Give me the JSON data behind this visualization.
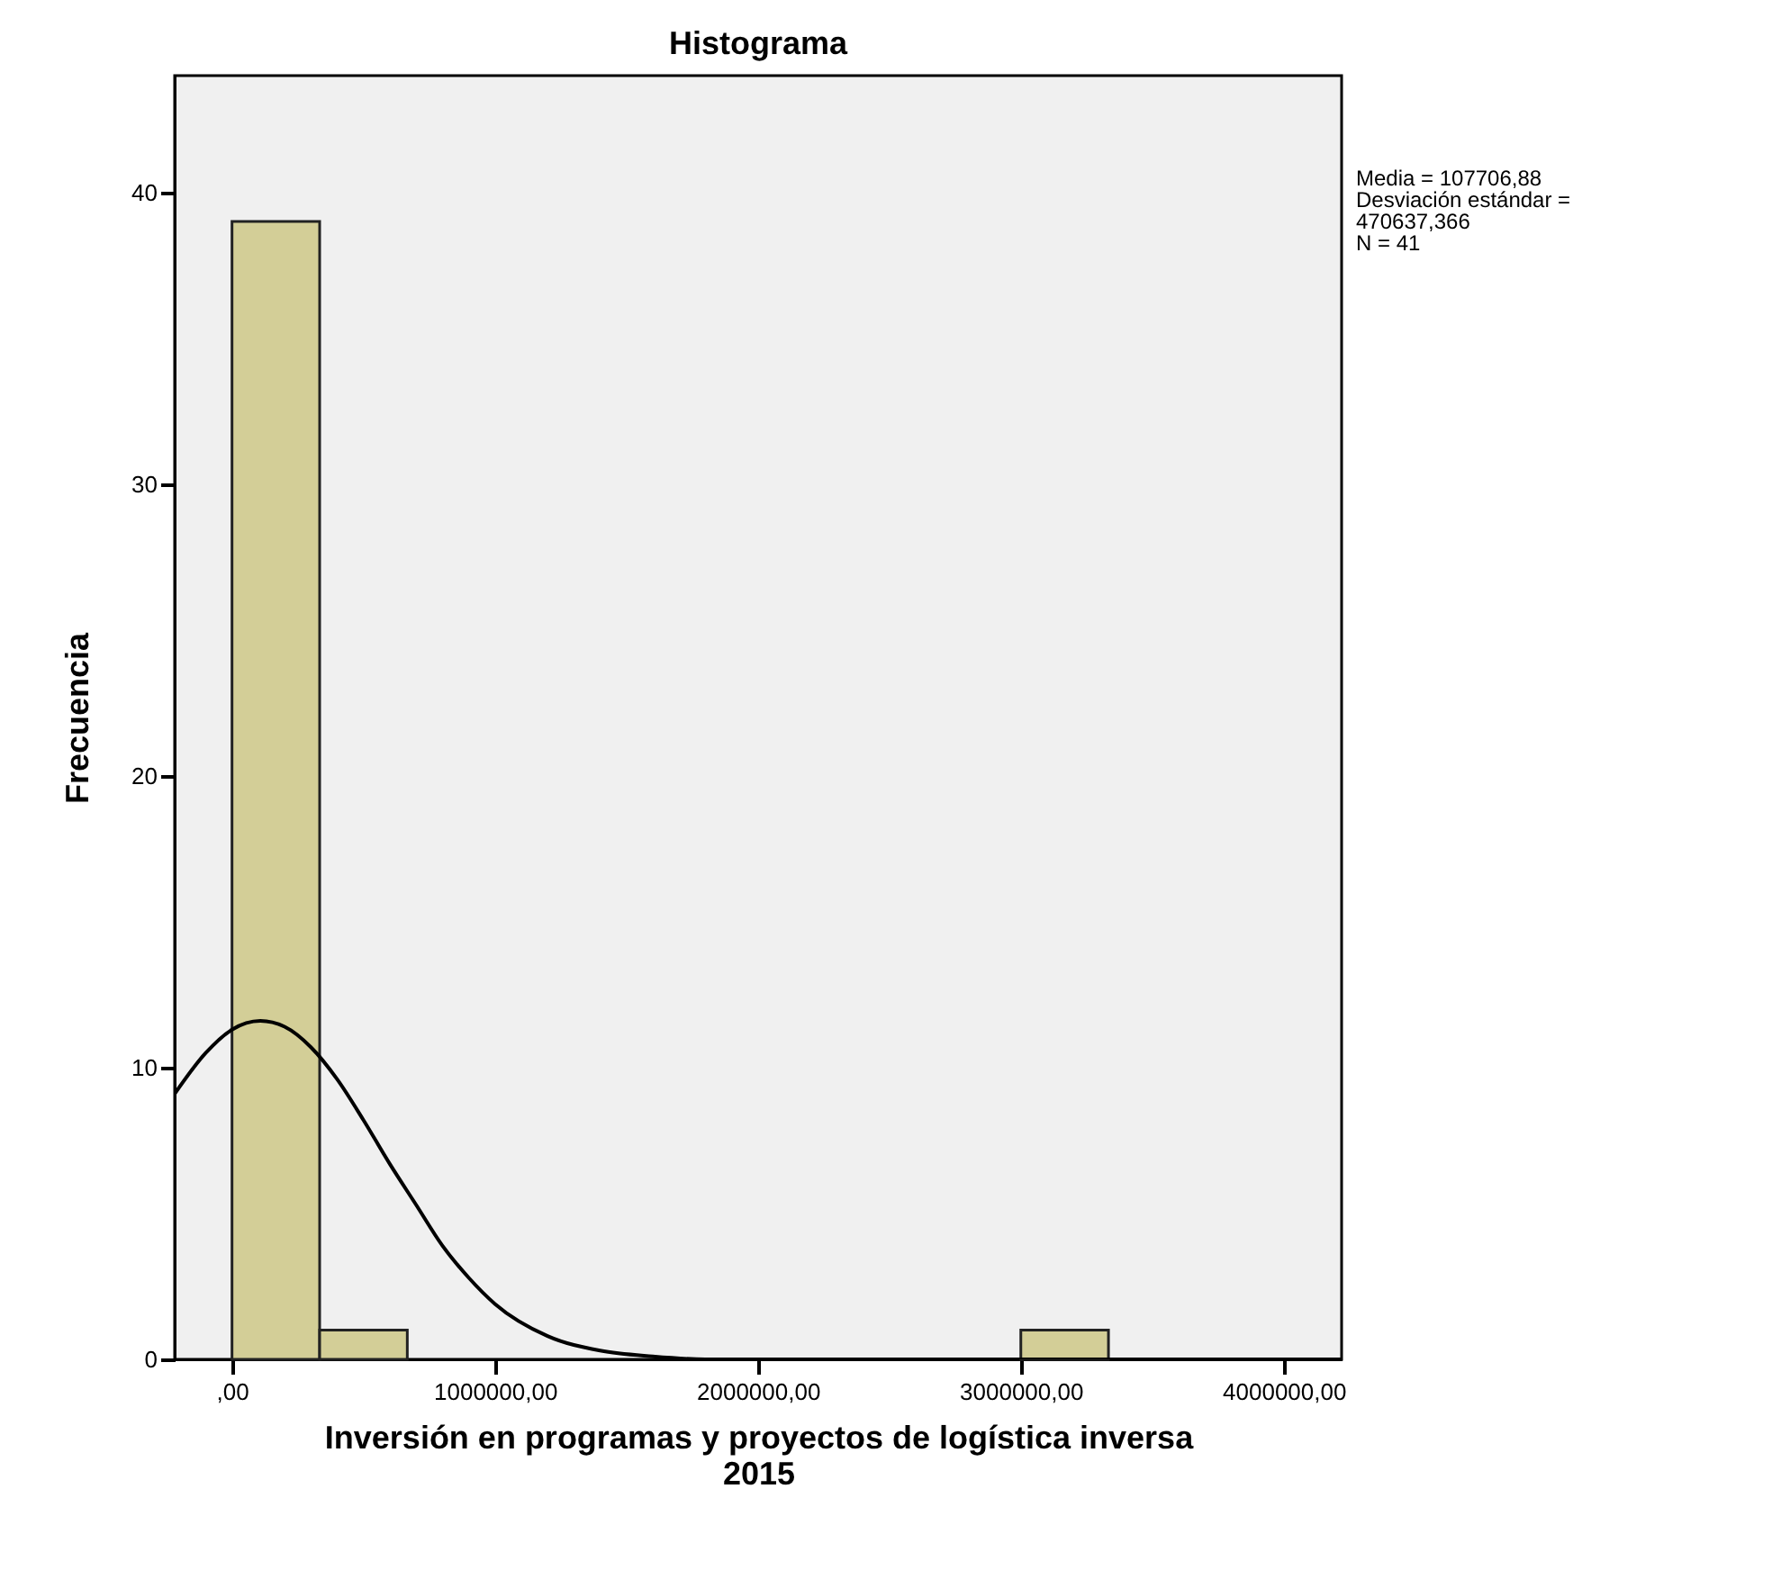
{
  "chart_data": {
    "type": "histogram",
    "title": "Histograma",
    "xlabel": "Inversión en programas y proyectos de logística inversa\n2015",
    "ylabel": "Frecuencia",
    "bins": [
      0,
      333333.33,
      666666.67,
      1000000,
      1333333.33,
      1666666.67,
      2000000,
      2333333.33,
      2666666.67,
      3000000,
      3333333.33
    ],
    "values": [
      39,
      1,
      0,
      0,
      0,
      0,
      0,
      0,
      0,
      1
    ],
    "color": "#d3ce97",
    "series": [
      {
        "type": "line",
        "color": "#000000",
        "x": [
          -218000,
          -100000,
          0,
          107707,
          200000,
          300000,
          400000,
          500000,
          600000,
          700000,
          800000,
          900000,
          1000000,
          1200000,
          1400000,
          1600000,
          1800000,
          2000000,
          2500000,
          3000000,
          3500000,
          4000000,
          4220000
        ],
        "values": [
          9.1,
          10.5,
          11.3,
          11.6,
          11.4,
          10.7,
          9.6,
          8.2,
          6.7,
          5.3,
          3.9,
          2.8,
          1.9,
          0.8,
          0.3,
          0.1,
          0.0,
          0.0,
          0.0,
          0.0,
          0.0,
          0.0,
          0.0
        ]
      }
    ],
    "xlim": [
      -218000,
      4220000
    ],
    "xticks": [
      {
        "value": 0,
        "label": ",00"
      },
      {
        "value": 1000000,
        "label": "1000000,00"
      },
      {
        "value": 2000000,
        "label": "2000000,00"
      },
      {
        "value": 3000000,
        "label": "3000000,00"
      },
      {
        "value": 4000000,
        "label": "4000000,00"
      }
    ],
    "ylim": [
      0,
      44
    ],
    "yticks": [
      0,
      10,
      20,
      30,
      40
    ],
    "annotations": [
      "Media = 107706,88\nDesviación estándar =\n470637,366\nN = 41"
    ],
    "grid": false
  }
}
